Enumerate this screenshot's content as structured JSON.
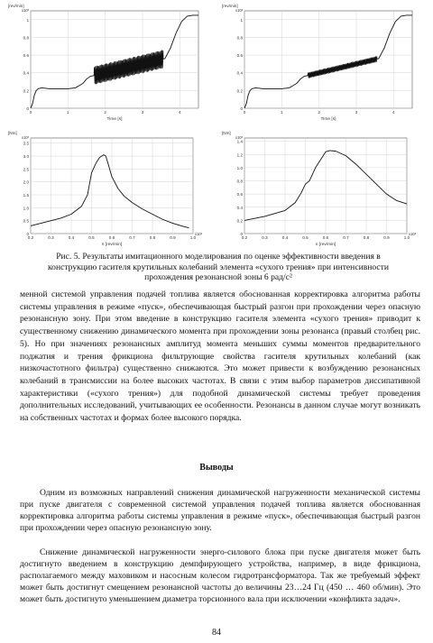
{
  "figure": {
    "charts": [
      {
        "id": "c1",
        "unit": "[rev/min]",
        "multiplier": "x10³",
        "xlabel": "Time [s]",
        "xticks": [
          "0",
          "1",
          "2",
          "3",
          "4"
        ],
        "yticks": [
          "0",
          "0.2",
          "0.4",
          "0.6",
          "0.8",
          "1"
        ]
      },
      {
        "id": "c2",
        "unit": "[rev/min]",
        "multiplier": "x10³",
        "xlabel": "Time [s]",
        "xticks": [
          "0",
          "1",
          "2",
          "3",
          "4"
        ],
        "yticks": [
          "0",
          "0.2",
          "0.4",
          "0.6",
          "0.8",
          "1"
        ]
      },
      {
        "id": "c3",
        "unit": "[Nm]",
        "multiplier": "x10³",
        "xlabel": "n [rev/min]",
        "xmultiplier": "x10³",
        "xticks": [
          "0.2",
          "0.3",
          "0.4",
          "0.5",
          "0.6",
          "0.7",
          "0.8",
          "0.9",
          "1.0"
        ],
        "yticks": [
          "0",
          "0.5",
          "1.0",
          "1.5",
          "2.0",
          "2.5",
          "3.0",
          "3.5"
        ]
      },
      {
        "id": "c4",
        "unit": "[Nm]",
        "multiplier": "x10³",
        "xlabel": "n [rev/min]",
        "xmultiplier": "x10³",
        "xticks": [
          "0.2",
          "0.3",
          "0.4",
          "0.5",
          "0.6",
          "0.7",
          "0.8",
          "0.9",
          "1.0"
        ],
        "yticks": [
          "0",
          "0.2",
          "0.4",
          "0.6",
          "0.8",
          "1.0",
          "1.2",
          "1.4"
        ]
      }
    ],
    "caption_line1": "Рис. 5. Результаты имитационного моделирования по оценке эффективности введения в",
    "caption_line2": "конструкцию гасителя крутильных колебаний элемента «сухого трения» при интенсивности",
    "caption_line3": "прохождения резонансной зоны 6 рад/с²"
  },
  "body": {
    "paragraph1": "менной системой управления подачей топлива является обоснованная корректировка алгоритма работы системы управления в режиме «пуск», обеспечивающая быстрый разгон при прохождении через опасную резонансную зону. При этом введение в конструкцию гасителя элемента «сухого трения» приводит к существенному снижению динамического момента при прохождении зоны резонанса (правый столбец рис. 5). Но при значениях резонансных амплитуд момента меньших суммы моментов предварительного поджатия и трения фрикциона фильтрующие свойства гасителя крутильных колебаний (как низкочастотного фильтра) существенно снижаются. Это может привести к возбуждению резонансных колебаний в трансмиссии на более высоких частотах. В связи с этим выбор параметров диссипативной характеристики («сухого трения») для подобной динамической системы требует проведения дополнительных исследований, учитывающих ее особенности. Резонансы в данном случае могут возникать на собственных частотах и формах более высокого порядка.",
    "conclusions_title": "Выводы",
    "paragraph2": "Одним из возможных направлений снижения динамической нагруженности механической системы при пуске двигателя с современной системой управления подачей топлива является обоснованная корректировка алгоритма работы системы управления в режиме «пуск», обеспечивающая быстрый разгон при прохождении через опасную резонансную зону.",
    "paragraph3": "Снижение динамической нагруженности энерго-силового блока при пуске двигателя может быть достигнуто введением в конструкцию демпфирующего устройства, например, в виде фрикциона, располагаемого между маховиком и насосным колесом гидротрансформатора. Так же требуемый эффект может быть достигнут смещением резонансной частоты до величины 23…24 Гц (450 … 460 об/мин). Это может быть достигнуто уменьшением диаметра торсионного вала при исключении «конфликта задач».",
    "page_number": "84"
  },
  "chart_data": [
    {
      "type": "line",
      "title": "",
      "xlabel": "Time [s]",
      "ylabel": "[rev/min] x10³",
      "xlim": [
        0,
        4.5
      ],
      "ylim": [
        0,
        1.1
      ],
      "series": [
        {
          "x": [
            0,
            0.05,
            0.1,
            0.15,
            0.2,
            0.3,
            0.5,
            0.8,
            1.0,
            1.2,
            1.4,
            1.5,
            1.6,
            1.7,
            3.6,
            3.75,
            3.9,
            4.05,
            4.2,
            4.35,
            4.5
          ],
          "values": [
            0,
            0.05,
            0.15,
            0.2,
            0.22,
            0.23,
            0.22,
            0.22,
            0.22,
            0.23,
            0.28,
            0.33,
            0.36,
            0.37,
            0.56,
            0.68,
            0.85,
            0.98,
            1.04,
            1.05,
            1.05
          ],
          "oscillation_from_s": 1.7,
          "oscillation_to_s": 3.55,
          "oscillation_amplitude": 0.1
        }
      ]
    },
    {
      "type": "line",
      "title": "",
      "xlabel": "Time [s]",
      "ylabel": "[rev/min] x10³",
      "xlim": [
        0,
        4.5
      ],
      "ylim": [
        0,
        1.1
      ],
      "series": [
        {
          "x": [
            0,
            0.05,
            0.1,
            0.15,
            0.2,
            0.3,
            0.5,
            0.8,
            1.0,
            1.2,
            1.4,
            1.5,
            1.6,
            1.7,
            3.6,
            3.75,
            3.9,
            4.05,
            4.2,
            4.35,
            4.5
          ],
          "values": [
            0,
            0.05,
            0.15,
            0.2,
            0.22,
            0.23,
            0.22,
            0.22,
            0.22,
            0.23,
            0.28,
            0.33,
            0.36,
            0.37,
            0.56,
            0.68,
            0.85,
            0.98,
            1.04,
            1.05,
            1.05
          ],
          "oscillation_from_s": 1.7,
          "oscillation_to_s": 3.55,
          "oscillation_amplitude": 0.03
        }
      ]
    },
    {
      "type": "line",
      "title": "",
      "xlabel": "n [rev/min] x10³",
      "ylabel": "[Nm] x10³",
      "xlim": [
        0.2,
        1.0
      ],
      "ylim": [
        0,
        3.7
      ],
      "series": [
        {
          "x": [
            0.2,
            0.25,
            0.3,
            0.35,
            0.4,
            0.45,
            0.48,
            0.5,
            0.52,
            0.54,
            0.56,
            0.57,
            0.58,
            0.6,
            0.63,
            0.66,
            0.7,
            0.75,
            0.8,
            0.85,
            0.9,
            0.95,
            0.98
          ],
          "values": [
            0.3,
            0.4,
            0.5,
            0.6,
            0.75,
            1.05,
            1.5,
            2.35,
            2.7,
            2.95,
            3.05,
            3.0,
            2.75,
            2.2,
            1.75,
            1.45,
            1.2,
            0.95,
            0.75,
            0.55,
            0.4,
            0.28,
            0.22
          ]
        }
      ]
    },
    {
      "type": "line",
      "title": "",
      "xlabel": "n [rev/min] x10³",
      "ylabel": "[Nm] x10³",
      "xlim": [
        0.2,
        1.0
      ],
      "ylim": [
        0,
        1.45
      ],
      "series": [
        {
          "x": [
            0.2,
            0.3,
            0.4,
            0.45,
            0.48,
            0.5,
            0.52,
            0.55,
            0.6,
            0.62,
            0.65,
            0.7,
            0.75,
            0.8,
            0.85,
            0.9,
            0.95,
            1.0
          ],
          "values": [
            0.2,
            0.26,
            0.35,
            0.47,
            0.62,
            0.75,
            0.8,
            1.0,
            1.24,
            1.26,
            1.25,
            1.18,
            1.05,
            0.9,
            0.75,
            0.6,
            0.5,
            0.45
          ]
        }
      ]
    }
  ]
}
